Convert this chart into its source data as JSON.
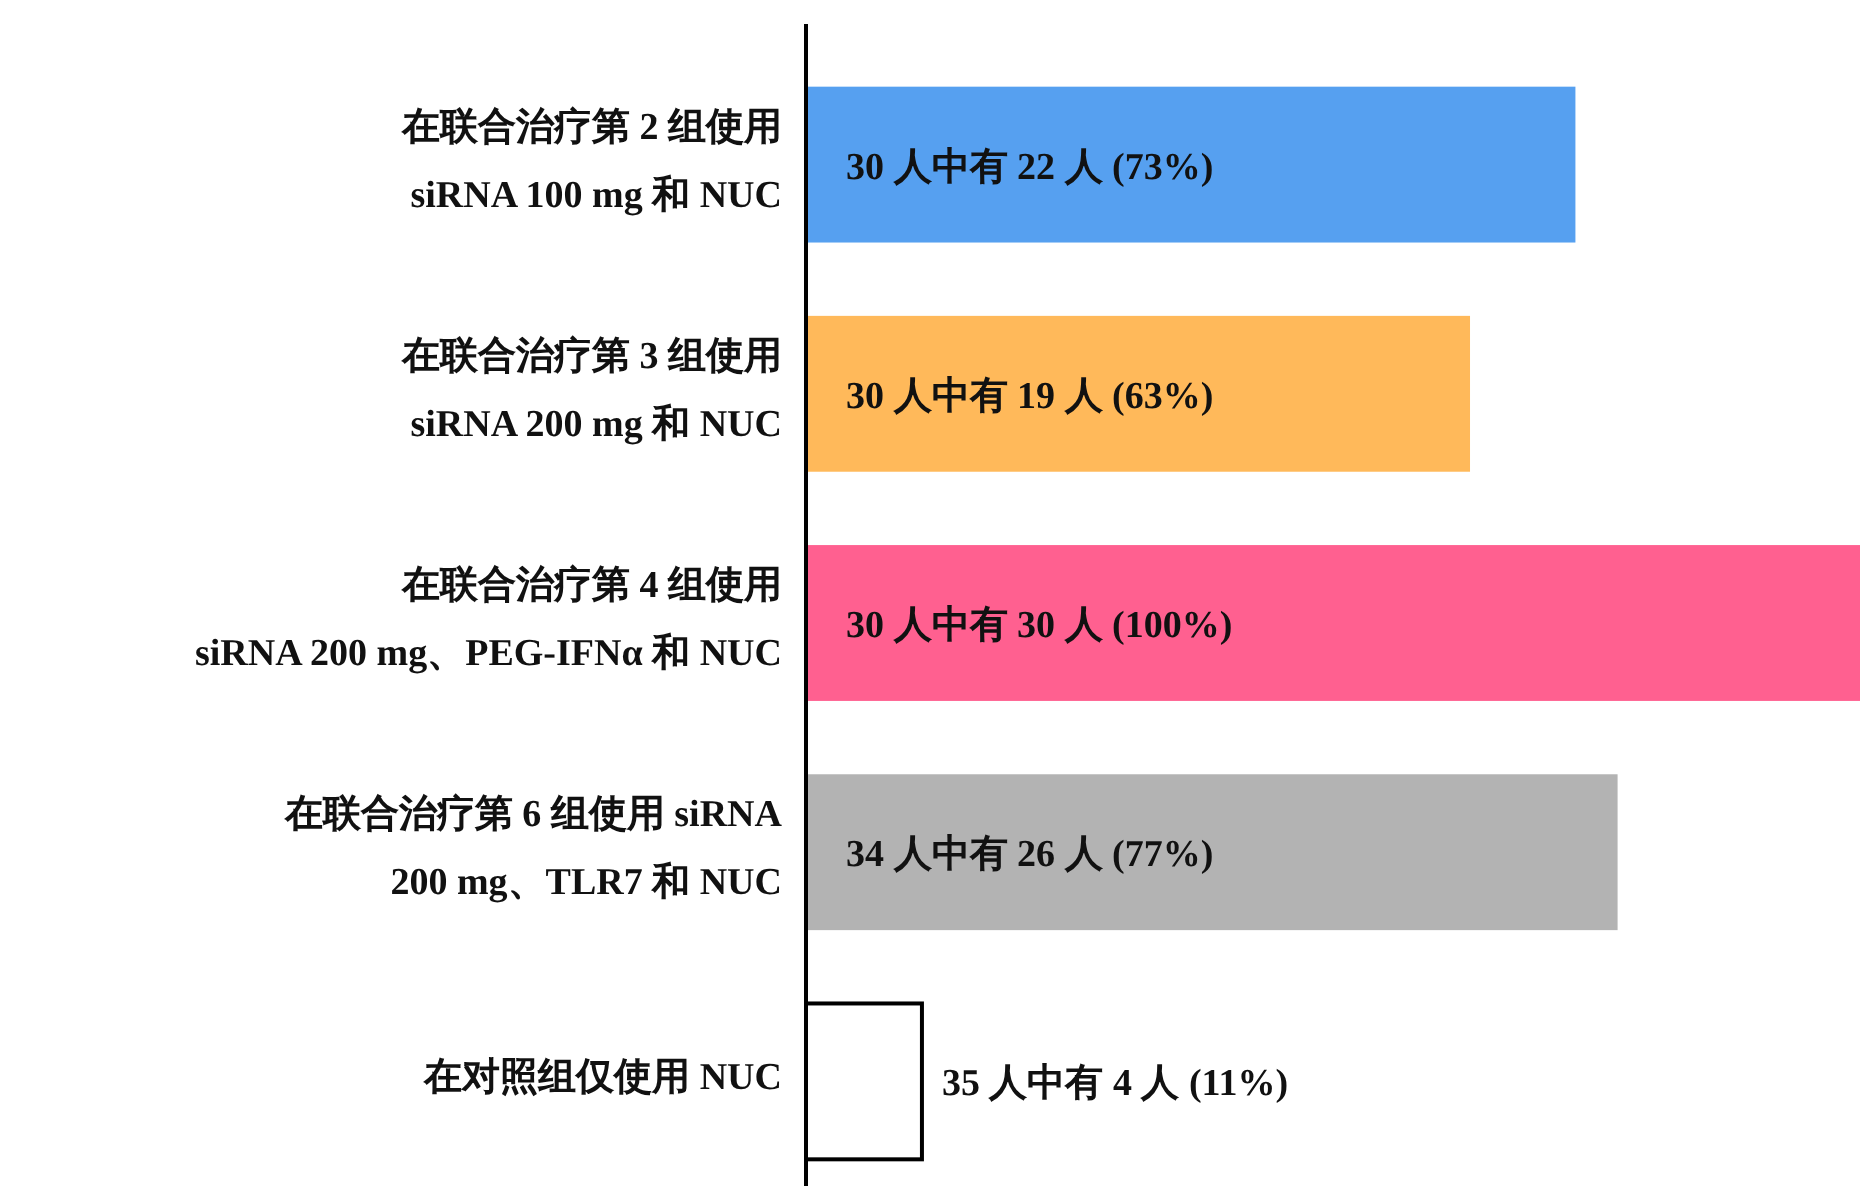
{
  "chart_data": {
    "type": "bar",
    "orientation": "horizontal",
    "categories": [
      "在联合治疗第 2 组使用\nsiRNA 100 mg 和 NUC",
      "在联合治疗第 3 组使用\nsiRNA 200 mg 和 NUC",
      "在联合治疗第 4 组使用\nsiRNA 200 mg、PEG-IFNα 和 NUC",
      "在联合治疗第 6 组使用 siRNA\n200 mg、TLR7 和 NUC",
      "在对照组仅使用 NUC"
    ],
    "values": [
      73,
      63,
      100,
      77,
      11
    ],
    "colors": [
      "#56a0f0",
      "#ffb95a",
      "#ff6090",
      "#b3b3b3",
      "#ffffff"
    ],
    "value_labels": [
      "30 人中有 22 人 (73%)",
      "30 人中有 19 人 (63%)",
      "30 人中有 30 人 (100%)",
      "34 人中有 26 人 (77%)",
      "35 人中有 4 人 (11%)"
    ]
  }
}
